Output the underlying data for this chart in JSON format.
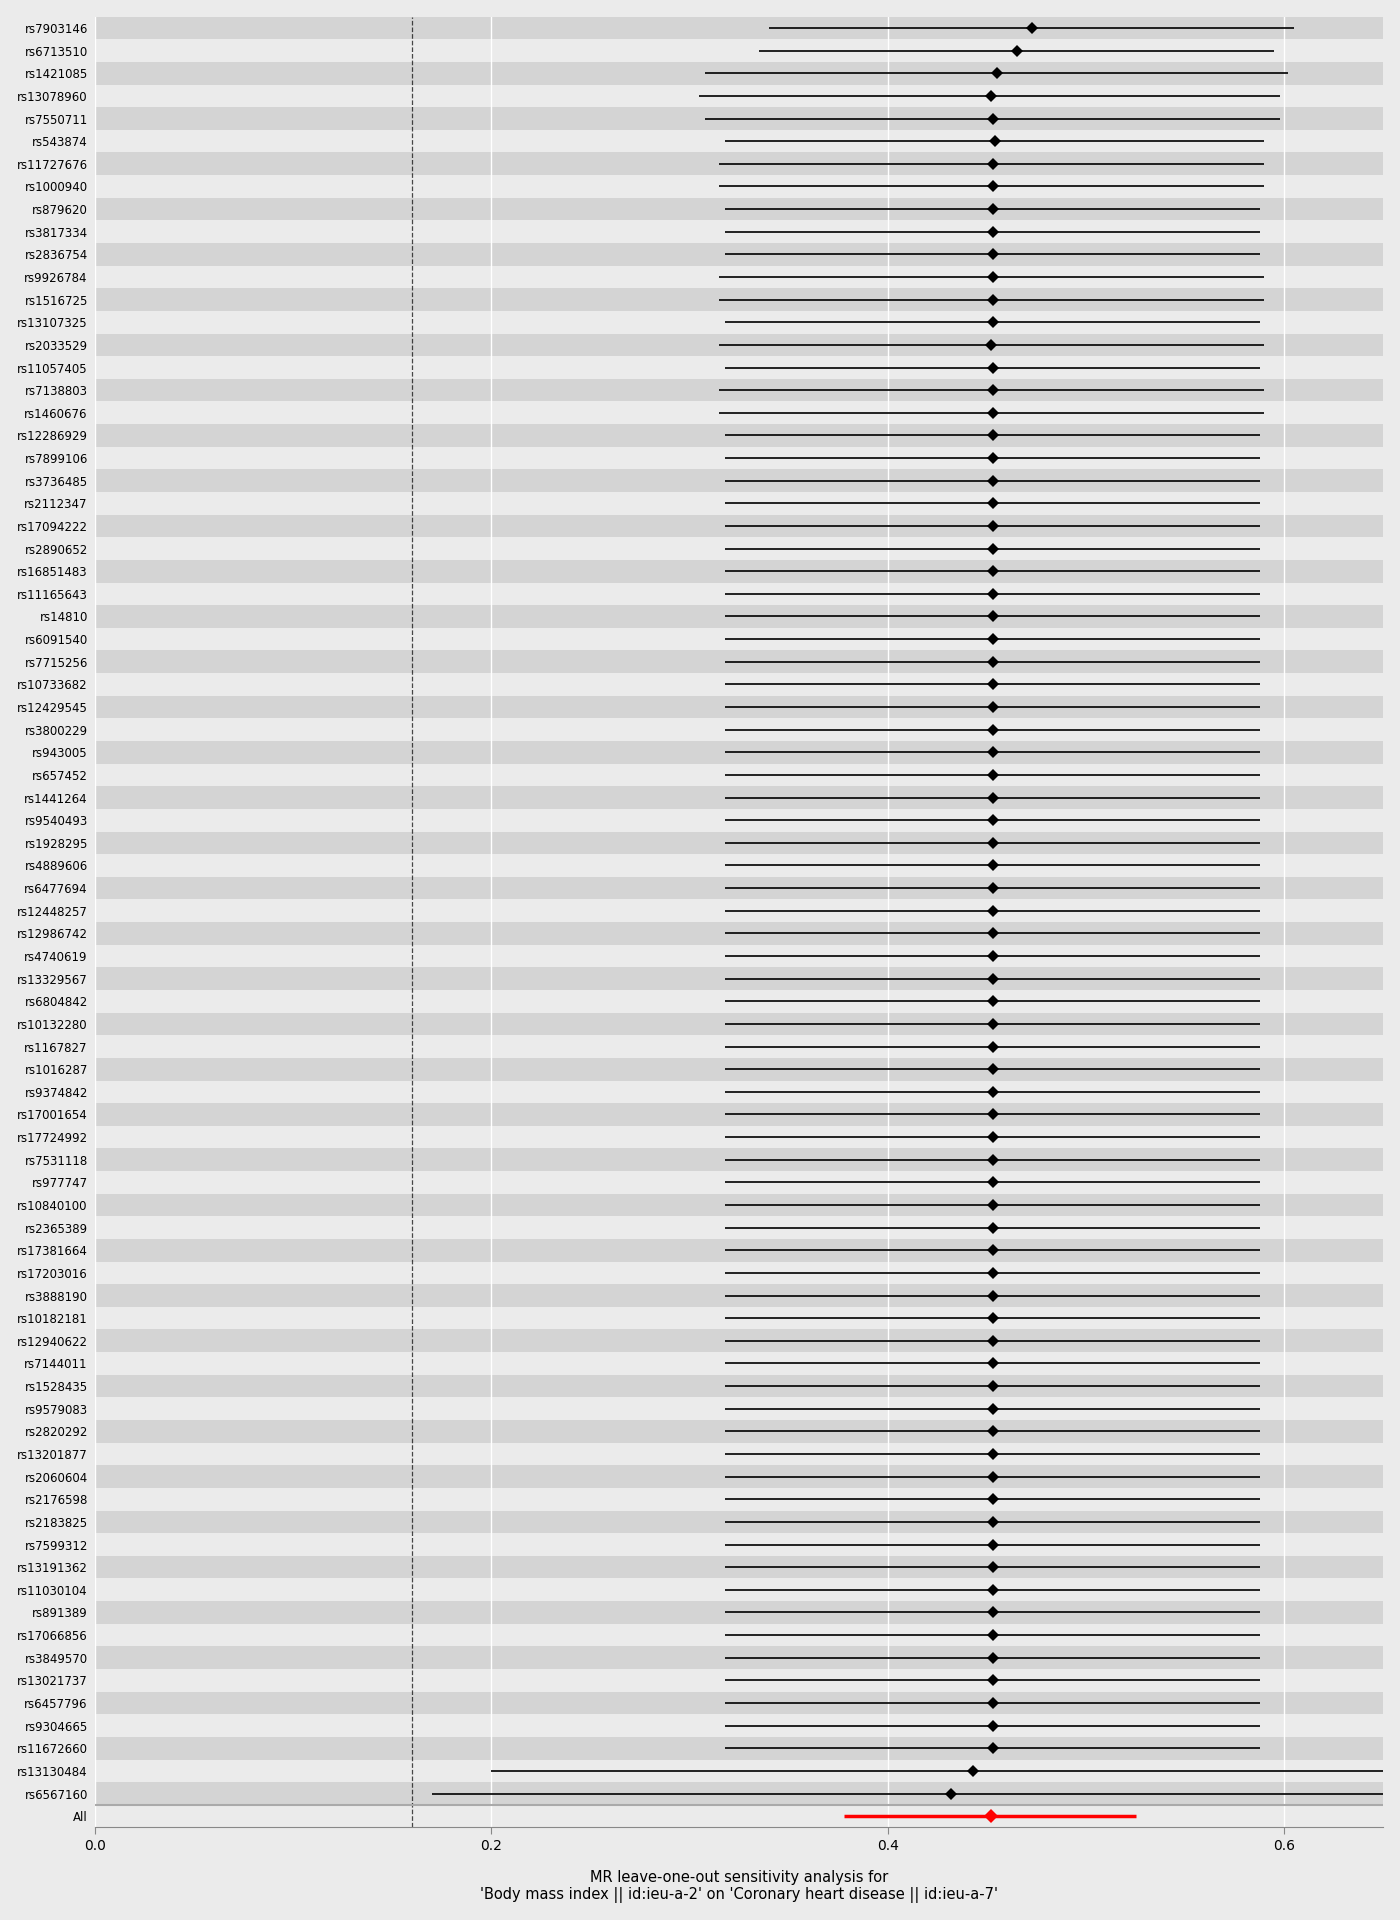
{
  "snps": [
    "rs7903146",
    "rs6713510",
    "rs1421085",
    "rs13078960",
    "rs7550711",
    "rs543874",
    "rs11727676",
    "rs1000940",
    "rs879620",
    "rs3817334",
    "rs2836754",
    "rs9926784",
    "rs1516725",
    "rs13107325",
    "rs2033529",
    "rs11057405",
    "rs7138803",
    "rs1460676",
    "rs12286929",
    "rs7899106",
    "rs3736485",
    "rs2112347",
    "rs17094222",
    "rs2890652",
    "rs16851483",
    "rs11165643",
    "rs14810",
    "rs6091540",
    "rs7715256",
    "rs10733682",
    "rs12429545",
    "rs3800229",
    "rs943005",
    "rs657452",
    "rs1441264",
    "rs9540493",
    "rs1928295",
    "rs4889606",
    "rs6477694",
    "rs12448257",
    "rs12986742",
    "rs4740619",
    "rs13329567",
    "rs6804842",
    "rs10132280",
    "rs1167827",
    "rs1016287",
    "rs9374842",
    "rs17001654",
    "rs17724992",
    "rs7531118",
    "rs977747",
    "rs10840100",
    "rs2365389",
    "rs17381664",
    "rs17203016",
    "rs3888190",
    "rs10182181",
    "rs12940622",
    "rs7144011",
    "rs1528435",
    "rs9579083",
    "rs2820292",
    "rs13201877",
    "rs2060604",
    "rs2176598",
    "rs2183825",
    "rs7599312",
    "rs13191362",
    "rs11030104",
    "rs891389",
    "rs17066856",
    "rs3849570",
    "rs13021737",
    "rs6457796",
    "rs9304665",
    "rs11672660",
    "rs13130484",
    "rs6567160",
    "All"
  ],
  "estimates": [
    0.473,
    0.465,
    0.455,
    0.452,
    0.453,
    0.454,
    0.453,
    0.453,
    0.453,
    0.453,
    0.453,
    0.453,
    0.453,
    0.453,
    0.452,
    0.453,
    0.453,
    0.453,
    0.453,
    0.453,
    0.453,
    0.453,
    0.453,
    0.453,
    0.453,
    0.453,
    0.453,
    0.453,
    0.453,
    0.453,
    0.453,
    0.453,
    0.453,
    0.453,
    0.453,
    0.453,
    0.453,
    0.453,
    0.453,
    0.453,
    0.453,
    0.453,
    0.453,
    0.453,
    0.453,
    0.453,
    0.453,
    0.453,
    0.453,
    0.453,
    0.453,
    0.453,
    0.453,
    0.453,
    0.453,
    0.453,
    0.453,
    0.453,
    0.453,
    0.453,
    0.453,
    0.453,
    0.453,
    0.453,
    0.453,
    0.453,
    0.453,
    0.453,
    0.453,
    0.453,
    0.453,
    0.453,
    0.453,
    0.453,
    0.453,
    0.453,
    0.453,
    0.443,
    0.432,
    0.452
  ],
  "ci_low": [
    0.34,
    0.335,
    0.308,
    0.305,
    0.308,
    0.318,
    0.315,
    0.315,
    0.318,
    0.318,
    0.318,
    0.315,
    0.315,
    0.318,
    0.315,
    0.318,
    0.315,
    0.315,
    0.318,
    0.318,
    0.318,
    0.318,
    0.318,
    0.318,
    0.318,
    0.318,
    0.318,
    0.318,
    0.318,
    0.318,
    0.318,
    0.318,
    0.318,
    0.318,
    0.318,
    0.318,
    0.318,
    0.318,
    0.318,
    0.318,
    0.318,
    0.318,
    0.318,
    0.318,
    0.318,
    0.318,
    0.318,
    0.318,
    0.318,
    0.318,
    0.318,
    0.318,
    0.318,
    0.318,
    0.318,
    0.318,
    0.318,
    0.318,
    0.318,
    0.318,
    0.318,
    0.318,
    0.318,
    0.318,
    0.318,
    0.318,
    0.318,
    0.318,
    0.318,
    0.318,
    0.318,
    0.318,
    0.318,
    0.318,
    0.318,
    0.318,
    0.318,
    0.2,
    0.17,
    0.378
  ],
  "ci_high": [
    0.605,
    0.595,
    0.602,
    0.598,
    0.598,
    0.59,
    0.59,
    0.59,
    0.588,
    0.588,
    0.588,
    0.59,
    0.59,
    0.588,
    0.59,
    0.588,
    0.59,
    0.59,
    0.588,
    0.588,
    0.588,
    0.588,
    0.588,
    0.588,
    0.588,
    0.588,
    0.588,
    0.588,
    0.588,
    0.588,
    0.588,
    0.588,
    0.588,
    0.588,
    0.588,
    0.588,
    0.588,
    0.588,
    0.588,
    0.588,
    0.588,
    0.588,
    0.588,
    0.588,
    0.588,
    0.588,
    0.588,
    0.588,
    0.588,
    0.588,
    0.588,
    0.588,
    0.588,
    0.588,
    0.588,
    0.588,
    0.588,
    0.588,
    0.588,
    0.588,
    0.588,
    0.588,
    0.588,
    0.588,
    0.588,
    0.588,
    0.588,
    0.588,
    0.588,
    0.588,
    0.588,
    0.588,
    0.588,
    0.588,
    0.588,
    0.588,
    0.588,
    0.685,
    0.695,
    0.525
  ],
  "xlim": [
    0.0,
    0.65
  ],
  "xticks": [
    0.0,
    0.2,
    0.4,
    0.6
  ],
  "xtick_labels": [
    "0.0",
    "0.2",
    "0.4",
    "0.6"
  ],
  "xlabel": "MR leave-one-out sensitivity analysis for\n'Body mass index || id:ieu-a-2' on 'Coronary heart disease || id:ieu-a-7'",
  "vline_x": 0.16,
  "point_color_normal": "#000000",
  "point_color_all": "#ff0000",
  "line_color_normal": "#000000",
  "line_color_all": "#ff0000",
  "bg_color": "#ebebeb",
  "row_alt_color": "#d4d4d4",
  "separator_color": "#aaaaaa",
  "fontsize_labels": 8.5,
  "fontsize_xlabel": 10.5
}
